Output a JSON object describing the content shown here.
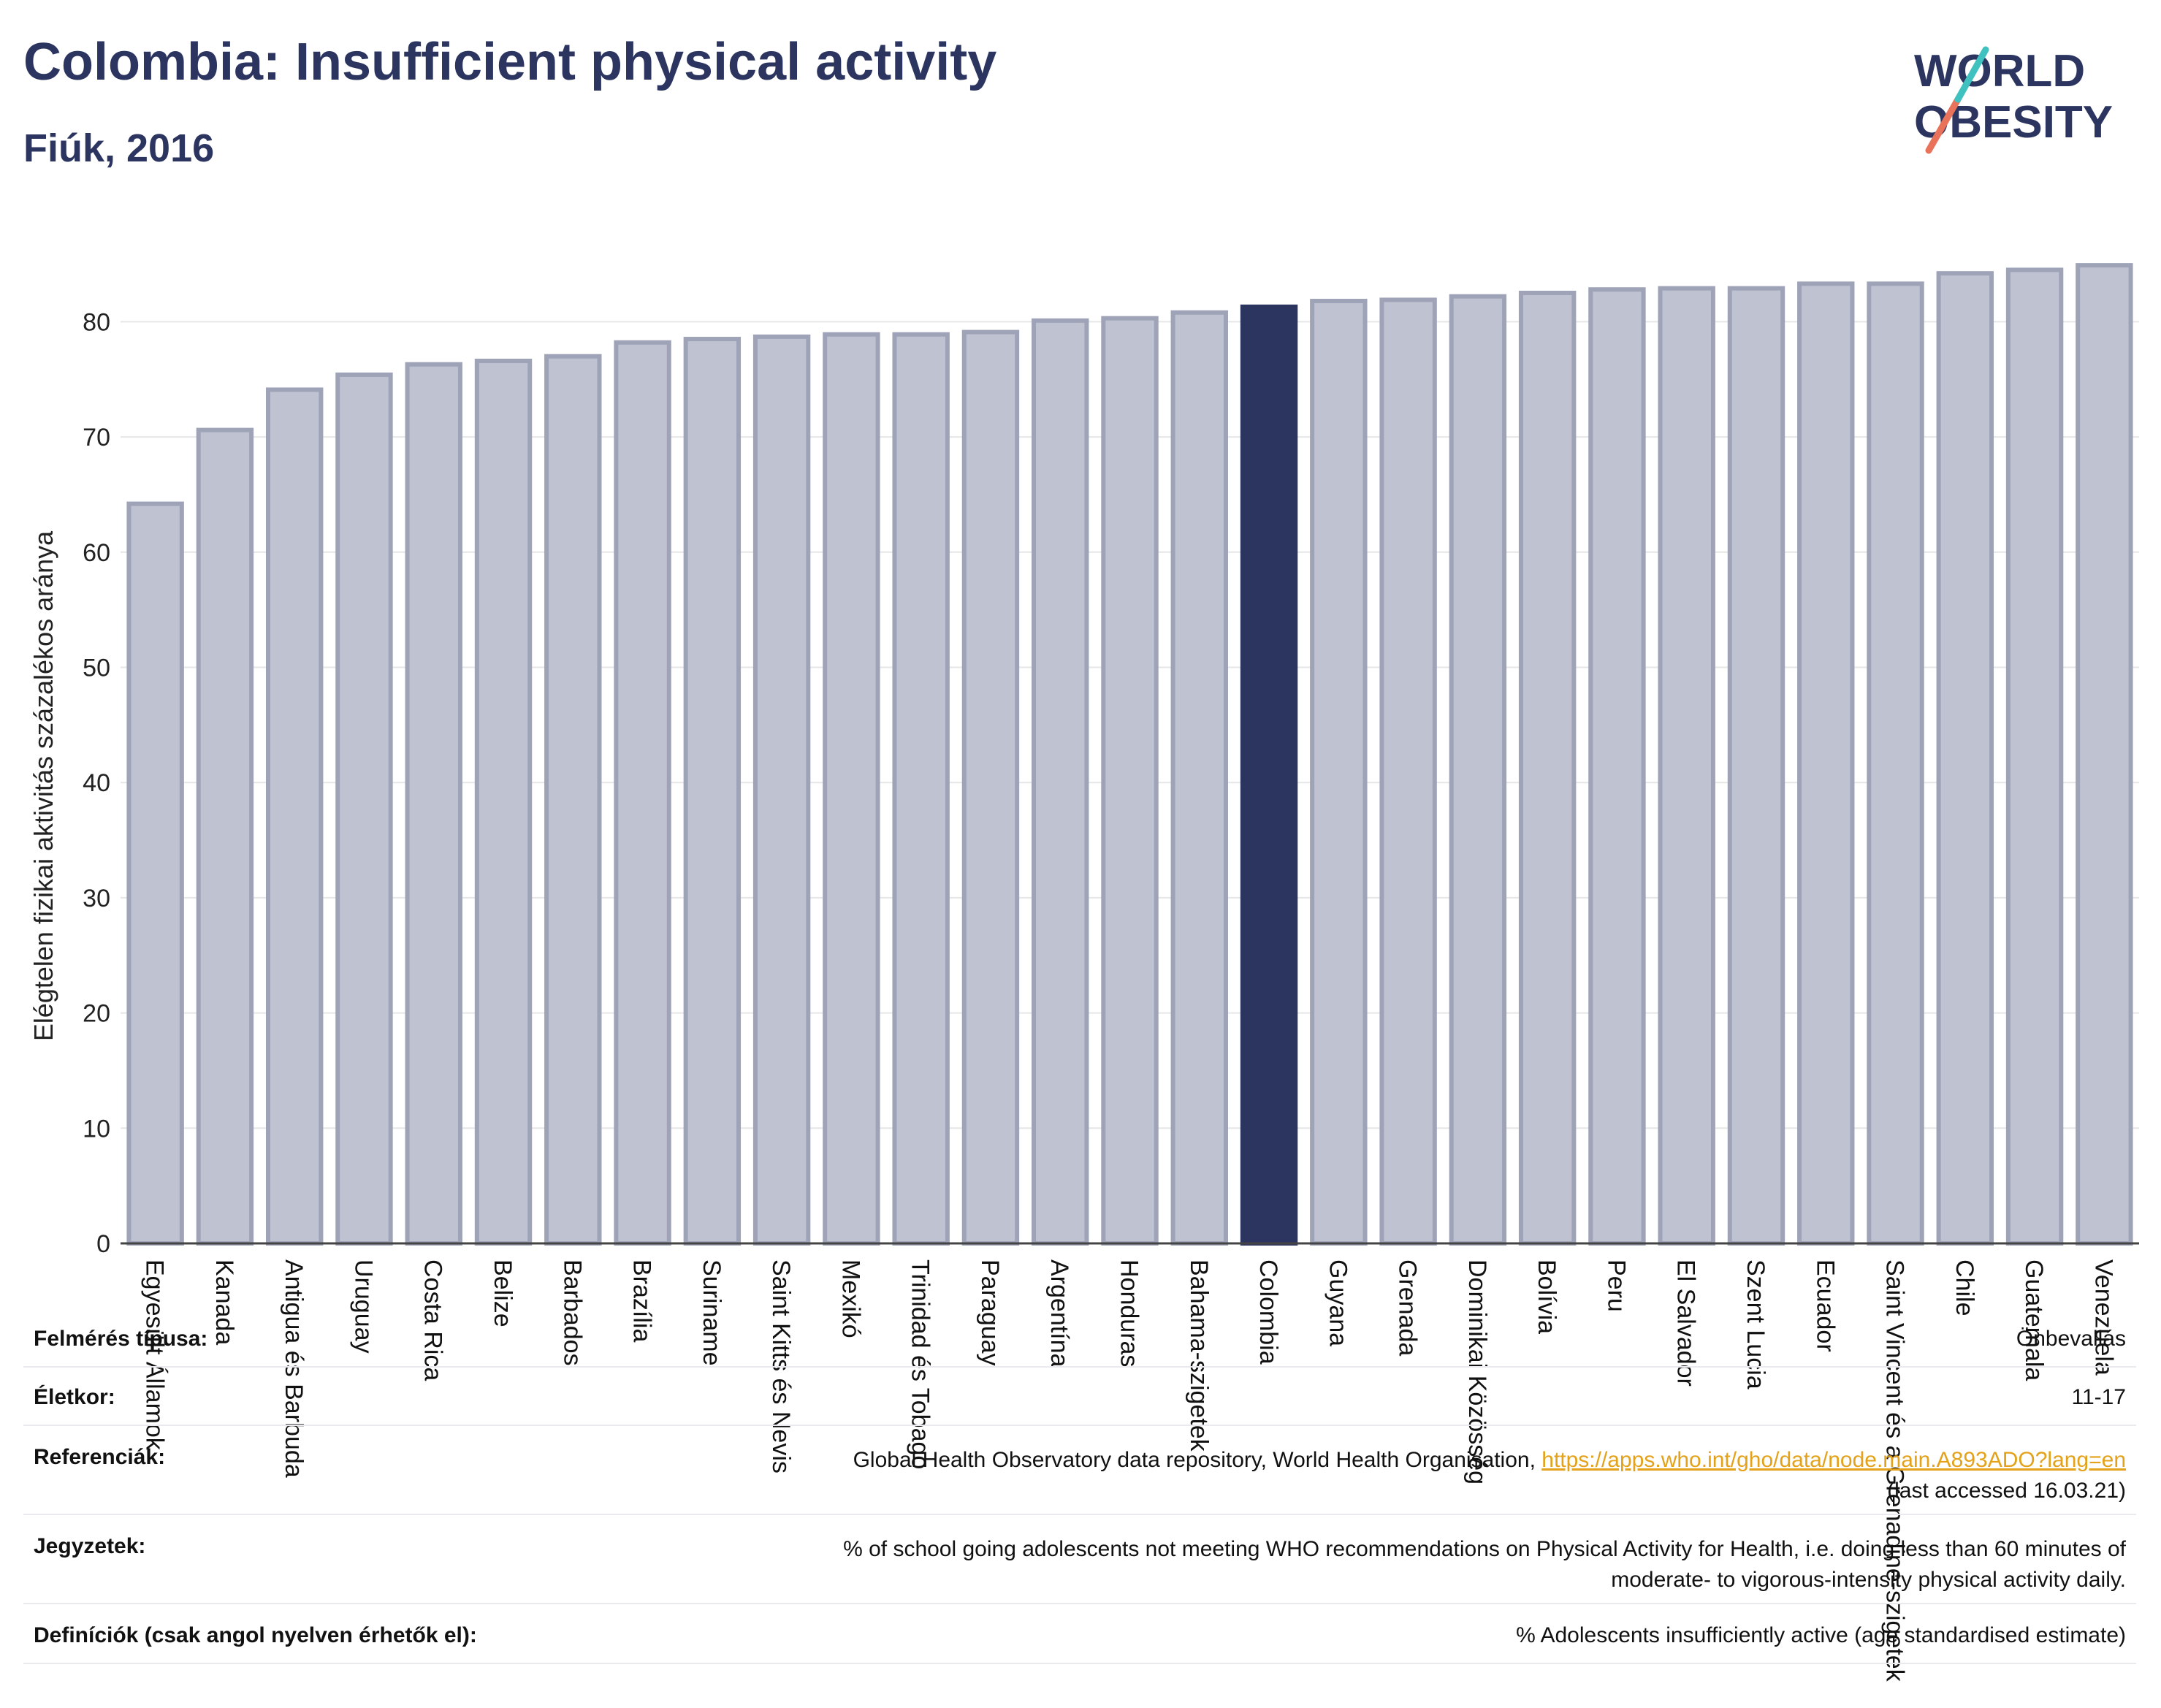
{
  "header": {
    "title": "Colombia: Insufficient physical activity",
    "subtitle": "Fiúk, 2016",
    "logo_line1": "WORLD",
    "logo_line2": "OBESITY"
  },
  "colors": {
    "highlight": "#2b3560",
    "bar_fill": "#bfc2d0",
    "bar_stroke": "#9ea3b8",
    "link": "#e3a21a"
  },
  "chart_data": {
    "type": "bar",
    "ylabel": "Elégtelen fizikai aktivitás százalékos aránya",
    "ylim": [
      0,
      87
    ],
    "yticks": [
      0,
      10,
      20,
      30,
      40,
      50,
      60,
      70,
      80
    ],
    "grid": true,
    "highlight_category": "Colombia",
    "categories": [
      "Egyesült Államok",
      "Kanada",
      "Antigua és Barbuda",
      "Uruguay",
      "Costa Rica",
      "Belize",
      "Barbados",
      "Brazília",
      "Suriname",
      "Saint Kitts és Nevis",
      "Mexikó",
      "Trinidad és Tobago",
      "Paraguay",
      "Argentína",
      "Honduras",
      "Bahama-szigetek",
      "Colombia",
      "Guyana",
      "Grenada",
      "Dominikai Közösség",
      "Bolívia",
      "Peru",
      "El Salvador",
      "Szent Lucia",
      "Ecuador",
      "Saint Vincent és a Grenadine-szigetek",
      "Chile",
      "Guatemala",
      "Venezuela"
    ],
    "values": [
      64.2,
      70.6,
      74.1,
      75.4,
      76.3,
      76.6,
      77.0,
      78.2,
      78.5,
      78.7,
      78.9,
      78.9,
      79.1,
      80.1,
      80.3,
      80.8,
      81.3,
      81.8,
      81.9,
      82.2,
      82.5,
      82.8,
      82.9,
      82.9,
      83.3,
      83.3,
      84.2,
      84.5,
      84.9
    ]
  },
  "info": {
    "survey_type_label": "Felmérés típusa:",
    "survey_type_value": "Önbevallás",
    "age_label": "Életkor:",
    "age_value": "11-17",
    "references_label": "Referenciák:",
    "references_text": "Global Health Observatory data repository, World Health Organisation, ",
    "references_link": "https://apps.who.int/gho/data/node.main.A893ADO?lang=en",
    "references_accessed": "(last accessed 16.03.21)",
    "notes_label": "Jegyzetek:",
    "notes_line1": "% of school going adolescents not meeting WHO recommendations on Physical Activity for Health, i.e. doing less than 60 minutes of",
    "notes_line2": "moderate- to vigorous-intensity physical activity daily.",
    "definitions_label": "Definíciók (csak angol nyelven érhetők el):",
    "definitions_value": "% Adolescents insufficiently active (age standardised estimate)"
  }
}
